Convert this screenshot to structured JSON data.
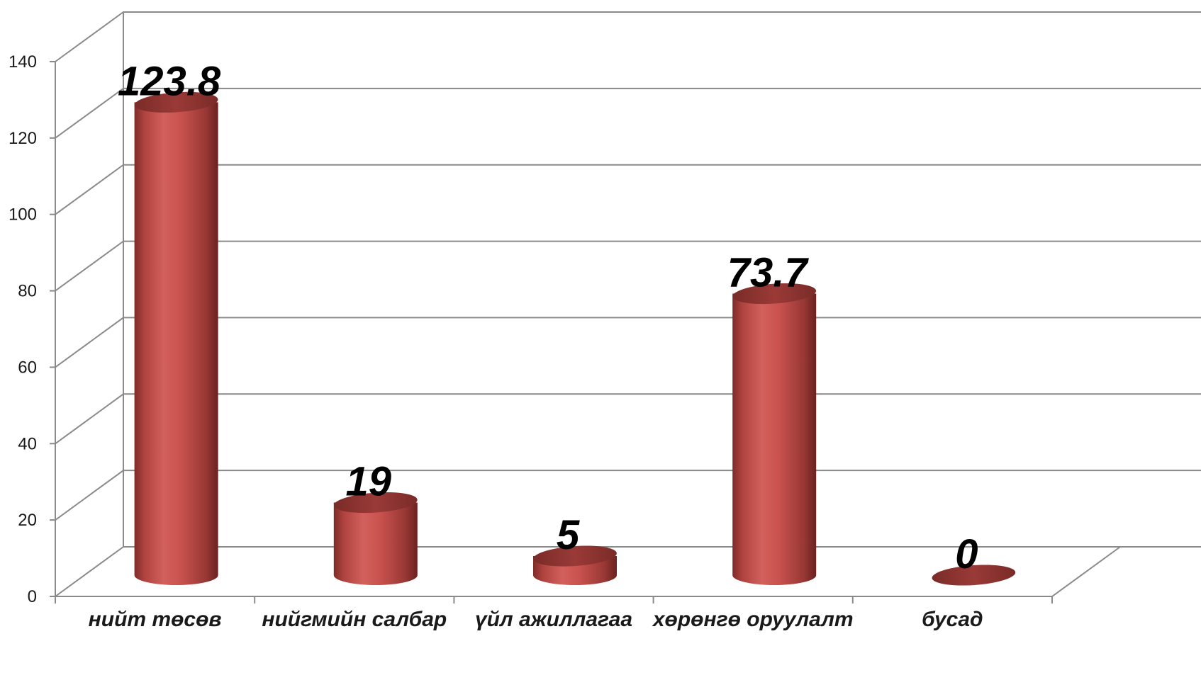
{
  "chart_data": {
    "type": "bar",
    "style": "3d-cylinder",
    "categories": [
      "нийт төсөв",
      "нийгмийн салбар",
      "үйл ажиллагаа",
      "хөрөнгө оруулалт",
      "бусад"
    ],
    "values": [
      123.8,
      19,
      5,
      73.7,
      0
    ],
    "data_labels": [
      "123.8",
      "19",
      "5",
      "73.7",
      "0"
    ],
    "y_ticks": [
      "0",
      "20",
      "40",
      "60",
      "80",
      "100",
      "120",
      "140"
    ],
    "ylim": [
      0,
      140
    ],
    "grid": true,
    "legend": "none",
    "bar_color": "#c0504d",
    "grid_color": "#8a8a8a"
  }
}
